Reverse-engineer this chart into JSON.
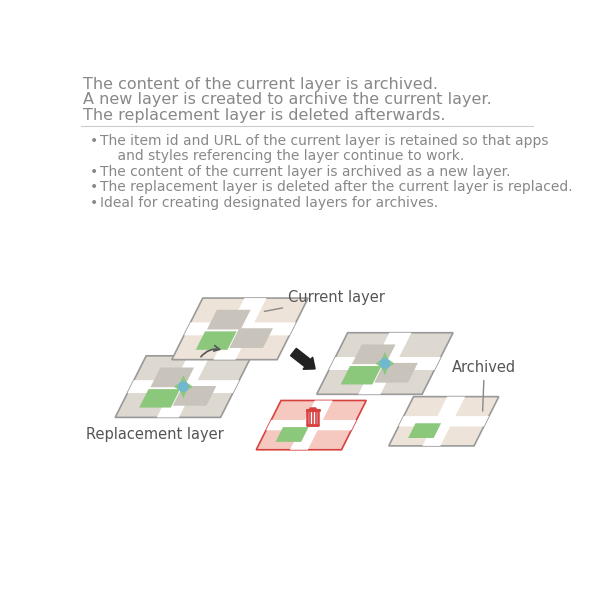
{
  "title_lines": [
    "The content of the current layer is archived.",
    "A new layer is created to archive the current layer.",
    "The replacement layer is deleted afterwards."
  ],
  "bullet_points": [
    "The item id and URL of the current layer is retained so that apps",
    "    and styles referencing the layer continue to work.",
    "The content of the current layer is archived as a new layer.",
    "The replacement layer is deleted after the current layer is replaced.",
    "Ideal for creating designated layers for archives."
  ],
  "title_fontsize": 11.5,
  "bullet_fontsize": 10.0,
  "title_color": "#888888",
  "bullet_color": "#888888",
  "bg_color": "#ffffff",
  "divider_color": "#cccccc",
  "label_current": "Current layer",
  "label_replacement": "Replacement layer",
  "label_archived": "Archived",
  "map_bg_normal": "#ede3d8",
  "map_bg_gray": "#ddd8d0",
  "map_bg_red": "#f5c8c0",
  "map_road_color": "#ffffff",
  "map_gray_block": "#c8c4bc",
  "map_green_block": "#8cc87c",
  "map_pin_outer": "#8cc87c",
  "map_pin_inner": "#70b8d0",
  "arrow_color": "#222222",
  "trash_color": "#d84040",
  "border_normal": "#999999",
  "border_red": "#d84040"
}
